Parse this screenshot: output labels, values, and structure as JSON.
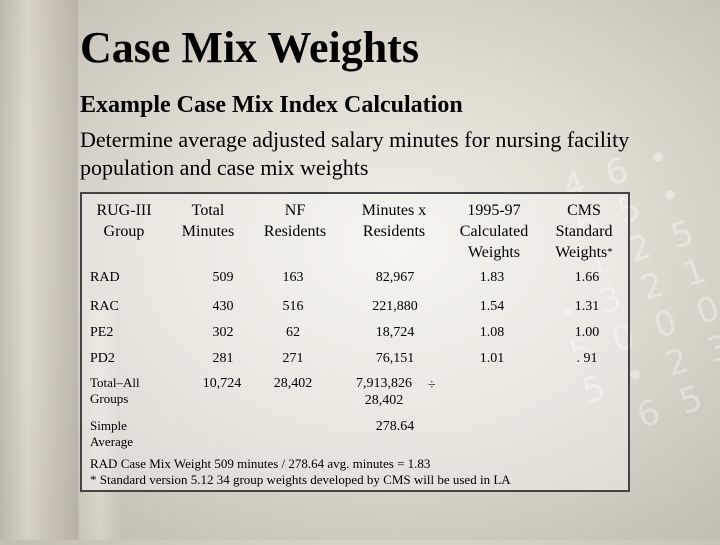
{
  "title": "Case Mix Weights",
  "subtitle": "Example Case Mix Index Calculation",
  "description": "Determine average adjusted salary minutes for nursing facility population and case mix weights",
  "headers": [
    "RUG-III Group",
    "Total Minutes",
    "NF Residents",
    "Minutes x Residents",
    "1995-97 Calculated Weights",
    "CMS Standard Weights"
  ],
  "header_marker": "*",
  "rows": [
    {
      "group": "RAD",
      "total": "509",
      "nf": "163",
      "mxr": "82,967",
      "calc": "1.83",
      "cms": "1.66"
    },
    {
      "group": "RAC",
      "total": "430",
      "nf": "516",
      "mxr": "221,880",
      "calc": "1.54",
      "cms": "1.31"
    },
    {
      "group": "PE2",
      "total": "302",
      "nf": "62",
      "mxr": "18,724",
      "calc": "1.08",
      "cms": "1.00"
    },
    {
      "group": "PD2",
      "total": "281",
      "nf": "271",
      "mxr": "76,151",
      "calc": "1.01",
      "cms": ". 91"
    }
  ],
  "total_row": {
    "group": "Total–All Groups",
    "total": "10,724",
    "nf": "28,402",
    "mxr_num": "7,913,826",
    "div": "÷",
    "mxr_den": "28,402"
  },
  "simple_average": {
    "group": "Simple Average",
    "value": "278.64"
  },
  "footer_line1": "RAD Case Mix Weight 509 minutes / 278.64 avg. minutes = 1.83",
  "footer_line2": "* Standard version 5.12 34 group weights developed by CMS will be used in LA",
  "background_digits": "4 6 •\n  6 5 •\n1 2 5\n• 3 2 1\n5 0 0 0\n5 • 2 3\n6 5 •"
}
